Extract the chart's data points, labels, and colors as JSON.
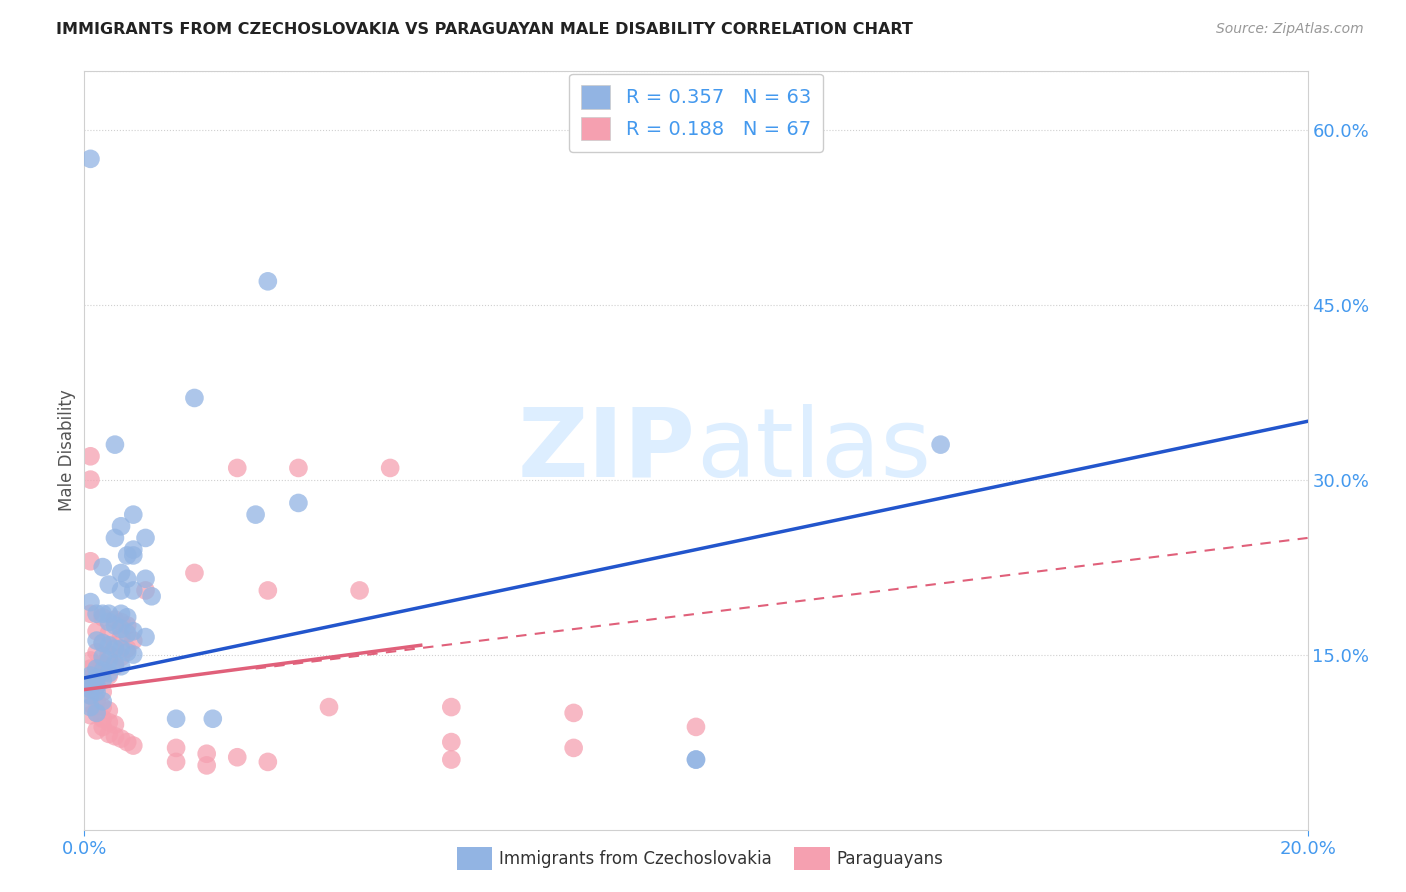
{
  "title": "IMMIGRANTS FROM CZECHOSLOVAKIA VS PARAGUAYAN MALE DISABILITY CORRELATION CHART",
  "source": "Source: ZipAtlas.com",
  "ylabel": "Male Disability",
  "xlim": [
    0.0,
    0.2
  ],
  "ylim": [
    0.0,
    0.65
  ],
  "y_ticks": [
    0.15,
    0.3,
    0.45,
    0.6
  ],
  "y_tick_labels": [
    "15.0%",
    "30.0%",
    "45.0%",
    "60.0%"
  ],
  "x_ticks": [
    0.0,
    0.2
  ],
  "x_tick_labels": [
    "0.0%",
    "20.0%"
  ],
  "legend_label1": "Immigrants from Czechoslovakia",
  "legend_label2": "Paraguayans",
  "blue_color": "#92B4E3",
  "pink_color": "#F5A0B0",
  "blue_line_color": "#2255CC",
  "pink_line_color": "#E0607A",
  "blue_scatter": [
    [
      0.001,
      0.575
    ],
    [
      0.03,
      0.47
    ],
    [
      0.035,
      0.28
    ],
    [
      0.018,
      0.37
    ],
    [
      0.005,
      0.33
    ],
    [
      0.008,
      0.27
    ],
    [
      0.006,
      0.26
    ],
    [
      0.01,
      0.25
    ],
    [
      0.005,
      0.25
    ],
    [
      0.008,
      0.24
    ],
    [
      0.008,
      0.235
    ],
    [
      0.007,
      0.235
    ],
    [
      0.003,
      0.225
    ],
    [
      0.006,
      0.22
    ],
    [
      0.007,
      0.215
    ],
    [
      0.01,
      0.215
    ],
    [
      0.004,
      0.21
    ],
    [
      0.006,
      0.205
    ],
    [
      0.008,
      0.205
    ],
    [
      0.011,
      0.2
    ],
    [
      0.001,
      0.195
    ],
    [
      0.002,
      0.185
    ],
    [
      0.003,
      0.185
    ],
    [
      0.004,
      0.185
    ],
    [
      0.006,
      0.185
    ],
    [
      0.007,
      0.182
    ],
    [
      0.004,
      0.178
    ],
    [
      0.005,
      0.175
    ],
    [
      0.006,
      0.172
    ],
    [
      0.008,
      0.17
    ],
    [
      0.007,
      0.168
    ],
    [
      0.01,
      0.165
    ],
    [
      0.002,
      0.162
    ],
    [
      0.003,
      0.16
    ],
    [
      0.004,
      0.158
    ],
    [
      0.005,
      0.155
    ],
    [
      0.006,
      0.155
    ],
    [
      0.007,
      0.152
    ],
    [
      0.008,
      0.15
    ],
    [
      0.003,
      0.148
    ],
    [
      0.004,
      0.145
    ],
    [
      0.005,
      0.142
    ],
    [
      0.006,
      0.14
    ],
    [
      0.002,
      0.138
    ],
    [
      0.003,
      0.136
    ],
    [
      0.004,
      0.134
    ],
    [
      0.001,
      0.132
    ],
    [
      0.002,
      0.13
    ],
    [
      0.003,
      0.128
    ],
    [
      0.001,
      0.125
    ],
    [
      0.002,
      0.123
    ],
    [
      0.001,
      0.12
    ],
    [
      0.002,
      0.118
    ],
    [
      0.001,
      0.115
    ],
    [
      0.003,
      0.11
    ],
    [
      0.001,
      0.105
    ],
    [
      0.002,
      0.1
    ],
    [
      0.015,
      0.095
    ],
    [
      0.021,
      0.095
    ],
    [
      0.14,
      0.33
    ],
    [
      0.1,
      0.06
    ],
    [
      0.1,
      0.06
    ],
    [
      0.028,
      0.27
    ]
  ],
  "pink_scatter": [
    [
      0.001,
      0.3
    ],
    [
      0.001,
      0.32
    ],
    [
      0.025,
      0.31
    ],
    [
      0.035,
      0.31
    ],
    [
      0.05,
      0.31
    ],
    [
      0.001,
      0.23
    ],
    [
      0.018,
      0.22
    ],
    [
      0.01,
      0.205
    ],
    [
      0.03,
      0.205
    ],
    [
      0.045,
      0.205
    ],
    [
      0.001,
      0.185
    ],
    [
      0.003,
      0.182
    ],
    [
      0.005,
      0.18
    ],
    [
      0.006,
      0.178
    ],
    [
      0.007,
      0.175
    ],
    [
      0.002,
      0.17
    ],
    [
      0.004,
      0.168
    ],
    [
      0.006,
      0.165
    ],
    [
      0.008,
      0.162
    ],
    [
      0.003,
      0.16
    ],
    [
      0.005,
      0.158
    ],
    [
      0.007,
      0.155
    ],
    [
      0.002,
      0.152
    ],
    [
      0.004,
      0.15
    ],
    [
      0.006,
      0.148
    ],
    [
      0.001,
      0.145
    ],
    [
      0.003,
      0.142
    ],
    [
      0.005,
      0.14
    ],
    [
      0.001,
      0.138
    ],
    [
      0.002,
      0.136
    ],
    [
      0.003,
      0.134
    ],
    [
      0.004,
      0.132
    ],
    [
      0.001,
      0.13
    ],
    [
      0.002,
      0.128
    ],
    [
      0.001,
      0.125
    ],
    [
      0.002,
      0.123
    ],
    [
      0.001,
      0.12
    ],
    [
      0.003,
      0.118
    ],
    [
      0.001,
      0.115
    ],
    [
      0.002,
      0.11
    ],
    [
      0.001,
      0.108
    ],
    [
      0.003,
      0.105
    ],
    [
      0.004,
      0.102
    ],
    [
      0.002,
      0.1
    ],
    [
      0.001,
      0.098
    ],
    [
      0.003,
      0.095
    ],
    [
      0.004,
      0.092
    ],
    [
      0.005,
      0.09
    ],
    [
      0.003,
      0.088
    ],
    [
      0.002,
      0.085
    ],
    [
      0.004,
      0.082
    ],
    [
      0.005,
      0.08
    ],
    [
      0.006,
      0.078
    ],
    [
      0.007,
      0.075
    ],
    [
      0.008,
      0.072
    ],
    [
      0.015,
      0.07
    ],
    [
      0.02,
      0.065
    ],
    [
      0.025,
      0.062
    ],
    [
      0.015,
      0.058
    ],
    [
      0.03,
      0.058
    ],
    [
      0.02,
      0.055
    ],
    [
      0.04,
      0.105
    ],
    [
      0.06,
      0.105
    ],
    [
      0.08,
      0.1
    ],
    [
      0.1,
      0.088
    ],
    [
      0.06,
      0.075
    ],
    [
      0.08,
      0.07
    ],
    [
      0.06,
      0.06
    ]
  ],
  "blue_line": [
    [
      0.0,
      0.13
    ],
    [
      0.2,
      0.35
    ]
  ],
  "pink_line_solid": [
    [
      0.0,
      0.12
    ],
    [
      0.055,
      0.158
    ]
  ],
  "pink_line_dashed": [
    [
      0.028,
      0.138
    ],
    [
      0.2,
      0.25
    ]
  ],
  "watermark_zip": "ZIP",
  "watermark_atlas": "atlas",
  "background_color": "#ffffff",
  "grid_color": "#d0d0d0",
  "tick_color": "#4499EE",
  "spine_color": "#d0d0d0"
}
